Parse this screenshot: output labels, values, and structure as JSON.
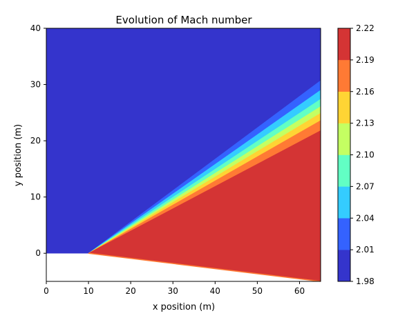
{
  "chart_data": {
    "type": "heatmap",
    "title": "Evolution of Mach number",
    "xlabel": "x position (m)",
    "ylabel": "y position (m)",
    "xlim": [
      0,
      65
    ],
    "ylim": [
      -5,
      40
    ],
    "x_ticks": [
      0,
      10,
      20,
      30,
      40,
      50,
      60
    ],
    "y_ticks": [
      0,
      10,
      20,
      30,
      40
    ],
    "colorbar": {
      "levels": [
        1.98,
        2.01,
        2.04,
        2.07,
        2.1,
        2.13,
        2.16,
        2.19,
        2.22
      ],
      "tick_labels": [
        "1.98",
        "2.01",
        "2.04",
        "2.07",
        "2.10",
        "2.13",
        "2.16",
        "2.19",
        "2.22"
      ],
      "colors": [
        "#3434cc",
        "#3462ff",
        "#34ccff",
        "#62ffc4",
        "#c4ff62",
        "#ffd434",
        "#ff7a34",
        "#d43434"
      ]
    },
    "geometry": {
      "wedge_tip": [
        10,
        0
      ],
      "wall_end": [
        65,
        -5
      ],
      "fan_band_x65": [
        {
          "band": 0,
          "y_top": 40,
          "y_bottom": 30.7
        },
        {
          "band": 1,
          "y_top": 30.7,
          "y_bottom": 29.0
        },
        {
          "band": 2,
          "y_top": 29.0,
          "y_bottom": 27.4
        },
        {
          "band": 3,
          "y_top": 27.4,
          "y_bottom": 26.1
        },
        {
          "band": 4,
          "y_top": 26.1,
          "y_bottom": 24.9
        },
        {
          "band": 5,
          "y_top": 24.9,
          "y_bottom": 23.6
        },
        {
          "band": 6,
          "y_top": 23.6,
          "y_bottom": 21.8
        },
        {
          "band": 7,
          "y_top": 21.8,
          "y_bottom": -5
        }
      ]
    }
  }
}
